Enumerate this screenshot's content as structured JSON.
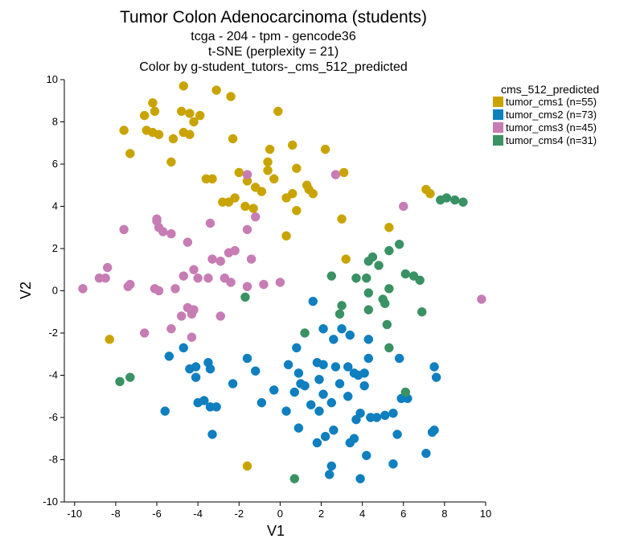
{
  "chart_data": {
    "type": "scatter",
    "title": "Tumor Colon Adenocarcinoma (students)",
    "subtitle_lines": [
      "tcga - 204 - tpm - gencode36",
      "t-SNE (perplexity = 21)",
      "Color by g-student_tutors-_cms_512_predicted"
    ],
    "xlabel": "V1",
    "ylabel": "V2",
    "xlim": [
      -10.5,
      10
    ],
    "ylim": [
      -10,
      10
    ],
    "xticks": [
      -10,
      -8,
      -6,
      -4,
      -2,
      0,
      2,
      4,
      6,
      8,
      10
    ],
    "yticks": [
      -10,
      -8,
      -6,
      -4,
      -2,
      0,
      2,
      4,
      6,
      8,
      10
    ],
    "grid": false,
    "legend": {
      "title": "cms_512_predicted",
      "placement": "right"
    },
    "series": [
      {
        "name": "tumor_cms1 (n=55)",
        "color": "#C9A400",
        "points": [
          [
            -4.7,
            9.7
          ],
          [
            -3.1,
            9.5
          ],
          [
            -2.4,
            9.2
          ],
          [
            -6.2,
            8.9
          ],
          [
            -4.4,
            8.4
          ],
          [
            -6.1,
            8.5
          ],
          [
            -4.8,
            8.5
          ],
          [
            -6.6,
            8.3
          ],
          [
            -3.9,
            8.3
          ],
          [
            -0.1,
            8.5
          ],
          [
            -7.6,
            7.6
          ],
          [
            -6.5,
            7.6
          ],
          [
            -6.2,
            7.5
          ],
          [
            -5.9,
            7.4
          ],
          [
            -4.2,
            8.0
          ],
          [
            -4.7,
            7.5
          ],
          [
            -4.4,
            7.4
          ],
          [
            -5.2,
            7.2
          ],
          [
            -2.3,
            7.2
          ],
          [
            -7.3,
            6.5
          ],
          [
            0.6,
            6.9
          ],
          [
            -0.5,
            6.7
          ],
          [
            2.2,
            6.7
          ],
          [
            -5.3,
            6.1
          ],
          [
            -0.6,
            6.1
          ],
          [
            -1.6,
            5.5
          ],
          [
            -2.0,
            5.6
          ],
          [
            -0.6,
            5.7
          ],
          [
            0.8,
            5.8
          ],
          [
            3.1,
            5.6
          ],
          [
            -3.6,
            5.3
          ],
          [
            -3.3,
            5.3
          ],
          [
            -1.6,
            5.2
          ],
          [
            -0.3,
            5.3
          ],
          [
            -1.2,
            4.9
          ],
          [
            1.3,
            5.0
          ],
          [
            -0.9,
            4.7
          ],
          [
            1.4,
            4.8
          ],
          [
            1.6,
            4.6
          ],
          [
            0.6,
            4.6
          ],
          [
            0.3,
            4.4
          ],
          [
            -2.2,
            4.4
          ],
          [
            -2.8,
            4.2
          ],
          [
            -2.5,
            4.2
          ],
          [
            -1.7,
            4.0
          ],
          [
            -1.3,
            3.9
          ],
          [
            0.8,
            3.8
          ],
          [
            3.0,
            3.4
          ],
          [
            0.3,
            2.6
          ],
          [
            5.3,
            3.0
          ],
          [
            3.2,
            1.5
          ],
          [
            7.1,
            4.8
          ],
          [
            7.3,
            4.6
          ],
          [
            -8.3,
            -2.3
          ],
          [
            -1.6,
            -8.3
          ]
        ]
      },
      {
        "name": "tumor_cms2 (n=73)",
        "color": "#0F7FBF",
        "points": [
          [
            1.6,
            -0.5
          ],
          [
            -4.7,
            -2.7
          ],
          [
            -5.4,
            -3.1
          ],
          [
            -1.6,
            -3.2
          ],
          [
            -3.5,
            -3.4
          ],
          [
            -4.1,
            -3.6
          ],
          [
            -4.4,
            -3.7
          ],
          [
            -3.4,
            -3.7
          ],
          [
            -4.1,
            -4.1
          ],
          [
            -2.3,
            -4.4
          ],
          [
            -5.6,
            -5.7
          ],
          [
            -4.0,
            -5.3
          ],
          [
            -3.7,
            -5.2
          ],
          [
            -3.4,
            -5.5
          ],
          [
            -3.1,
            -5.5
          ],
          [
            -0.9,
            -5.3
          ],
          [
            -0.3,
            -4.7
          ],
          [
            -3.3,
            -6.8
          ],
          [
            0.4,
            -3.5
          ],
          [
            0.8,
            -2.7
          ],
          [
            0.9,
            -3.9
          ],
          [
            1.0,
            -4.4
          ],
          [
            1.2,
            -4.5
          ],
          [
            1.8,
            -3.4
          ],
          [
            2.1,
            -3.5
          ],
          [
            2.1,
            -1.8
          ],
          [
            3.0,
            -1.8
          ],
          [
            3.4,
            -2.1
          ],
          [
            4.3,
            -2.3
          ],
          [
            2.6,
            -2.3
          ],
          [
            2.7,
            -3.6
          ],
          [
            3.3,
            -3.6
          ],
          [
            3.6,
            -3.9
          ],
          [
            3.8,
            -4.0
          ],
          [
            4.1,
            -3.9
          ],
          [
            4.3,
            -3.2
          ],
          [
            1.9,
            -4.2
          ],
          [
            2.9,
            -4.4
          ],
          [
            2.1,
            -4.9
          ],
          [
            3.3,
            -5.0
          ],
          [
            1.5,
            -5.4
          ],
          [
            1.9,
            -5.7
          ],
          [
            2.5,
            -5.3
          ],
          [
            3.9,
            -5.8
          ],
          [
            4.4,
            -6.0
          ],
          [
            4.7,
            -6.0
          ],
          [
            3.7,
            -6.1
          ],
          [
            5.5,
            -5.8
          ],
          [
            0.9,
            -6.5
          ],
          [
            2.6,
            -6.6
          ],
          [
            3.6,
            -7.0
          ],
          [
            3.4,
            -7.2
          ],
          [
            1.8,
            -7.2
          ],
          [
            2.2,
            -6.9
          ],
          [
            4.2,
            -7.8
          ],
          [
            5.9,
            -5.1
          ],
          [
            6.2,
            -5.1
          ],
          [
            5.7,
            -6.8
          ],
          [
            5.5,
            -8.2
          ],
          [
            7.5,
            -3.6
          ],
          [
            7.6,
            -4.1
          ],
          [
            7.5,
            -6.6
          ],
          [
            7.4,
            -6.7
          ],
          [
            7.1,
            -7.7
          ],
          [
            5.8,
            -3.2
          ],
          [
            2.5,
            -8.3
          ],
          [
            2.4,
            -8.7
          ],
          [
            3.9,
            -8.9
          ],
          [
            0.7,
            -4.8
          ],
          [
            4.1,
            -4.5
          ],
          [
            5.1,
            -5.9
          ],
          [
            0.3,
            -5.7
          ],
          [
            -1.2,
            -3.8
          ]
        ]
      },
      {
        "name": "tumor_cms3 (n=45)",
        "color": "#C77CB4",
        "points": [
          [
            -1.6,
            5.5
          ],
          [
            2.7,
            5.5
          ],
          [
            -1.2,
            3.5
          ],
          [
            6.0,
            4.0
          ],
          [
            -6.0,
            3.4
          ],
          [
            -6.0,
            3.3
          ],
          [
            -5.9,
            3.0
          ],
          [
            -5.7,
            2.8
          ],
          [
            -5.3,
            2.7
          ],
          [
            -7.6,
            2.9
          ],
          [
            -3.4,
            3.2
          ],
          [
            -1.6,
            2.9
          ],
          [
            -4.5,
            2.3
          ],
          [
            -2.2,
            1.9
          ],
          [
            -2.5,
            1.8
          ],
          [
            -3.3,
            1.5
          ],
          [
            -2.9,
            1.4
          ],
          [
            -1.4,
            1.5
          ],
          [
            -8.4,
            1.1
          ],
          [
            -8.5,
            0.6
          ],
          [
            -8.8,
            0.6
          ],
          [
            -4.2,
            1.0
          ],
          [
            -4.0,
            0.6
          ],
          [
            -3.5,
            0.6
          ],
          [
            -2.7,
            0.6
          ],
          [
            -2.4,
            0.4
          ],
          [
            -7.3,
            0.3
          ],
          [
            -7.4,
            0.2
          ],
          [
            -9.6,
            0.1
          ],
          [
            -6.1,
            0.1
          ],
          [
            -5.9,
            0.0
          ],
          [
            -5.1,
            0.1
          ],
          [
            -1.6,
            0.2
          ],
          [
            -0.8,
            0.3
          ],
          [
            0.0,
            0.4
          ],
          [
            -4.7,
            0.7
          ],
          [
            -4.5,
            -0.8
          ],
          [
            -4.2,
            -0.9
          ],
          [
            -4.8,
            -1.2
          ],
          [
            -2.9,
            -1.2
          ],
          [
            -5.3,
            -1.8
          ],
          [
            -4.3,
            -2.2
          ],
          [
            -6.6,
            -2.0
          ],
          [
            9.8,
            -0.4
          ],
          [
            -4.3,
            -1.1
          ]
        ]
      },
      {
        "name": "tumor_cms4 (n=31)",
        "color": "#3A9264",
        "points": [
          [
            7.8,
            4.3
          ],
          [
            8.1,
            4.4
          ],
          [
            8.5,
            4.3
          ],
          [
            8.9,
            4.2
          ],
          [
            5.8,
            2.2
          ],
          [
            5.3,
            1.9
          ],
          [
            4.5,
            1.6
          ],
          [
            4.3,
            1.4
          ],
          [
            4.8,
            1.2
          ],
          [
            4.2,
            0.6
          ],
          [
            3.7,
            0.6
          ],
          [
            2.5,
            0.7
          ],
          [
            5.3,
            0.1
          ],
          [
            6.1,
            0.8
          ],
          [
            6.5,
            0.7
          ],
          [
            6.8,
            0.5
          ],
          [
            4.3,
            -0.1
          ],
          [
            5.0,
            -0.4
          ],
          [
            3.0,
            -0.7
          ],
          [
            2.9,
            -1.1
          ],
          [
            5.1,
            -0.6
          ],
          [
            4.3,
            -0.9
          ],
          [
            5.2,
            -1.6
          ],
          [
            6.9,
            -1.0
          ],
          [
            5.3,
            -2.7
          ],
          [
            1.2,
            -2.0
          ],
          [
            -1.7,
            -0.3
          ],
          [
            6.1,
            -4.8
          ],
          [
            -7.3,
            -4.1
          ],
          [
            -7.8,
            -4.3
          ],
          [
            0.7,
            -8.9
          ]
        ]
      }
    ]
  }
}
